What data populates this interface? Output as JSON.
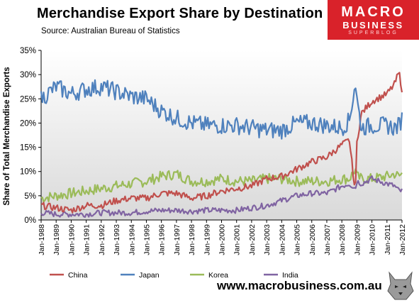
{
  "header": {
    "title": "Merchandise  Export  Share  by  Destination",
    "source": "Source:  Australian Bureau of Statistics"
  },
  "logo": {
    "line1": "MACRO",
    "line2": "BUSINESS",
    "line3": "SUPERBLOG"
  },
  "footer": {
    "website": "www.macrobusiness.com.au"
  },
  "colors": {
    "China": "#c0504d",
    "Japan": "#4f81bd",
    "Korea": "#9bbb59",
    "India": "#8064a2",
    "plot_gradient_top": "#ffffff",
    "plot_gradient_bottom": "#d9d9d9",
    "logo_red": "#d9222a"
  },
  "chart_data": {
    "type": "line",
    "title": "Merchandise  Export  Share  by  Destination",
    "ylabel": "Share of Total Merchandise Exports",
    "xlabel": "",
    "ylim": [
      0,
      35
    ],
    "yticks": [
      "0%",
      "5%",
      "10%",
      "15%",
      "20%",
      "25%",
      "30%",
      "35%"
    ],
    "xticks": [
      "Jan-1988",
      "Jan-1989",
      "Jan-1990",
      "Jan-1991",
      "Jan-1992",
      "Jan-1993",
      "Jan-1994",
      "Jan-1995",
      "Jan-1996",
      "Jan-1997",
      "Jan-1998",
      "Jan-1999",
      "Jan-2000",
      "Jan-2001",
      "Jan-2002",
      "Jan-2003",
      "Jan-2004",
      "Jan-2005",
      "Jan-2006",
      "Jan-2007",
      "Jan-2008",
      "Jan-2009",
      "Jan-2010",
      "Jan-2011",
      "Jan-2012"
    ],
    "grid": false,
    "legend": "bottom",
    "series": [
      {
        "name": "China",
        "x": [
          1988.0,
          1989.0,
          1990.0,
          1991.0,
          1992.0,
          1993.0,
          1994.0,
          1995.0,
          1996.0,
          1997.0,
          1998.0,
          1999.0,
          2000.0,
          2001.0,
          2002.0,
          2003.0,
          2004.0,
          2005.0,
          2006.0,
          2007.0,
          2008.0,
          2008.5,
          2008.9,
          2009.0,
          2009.3,
          2010.0,
          2011.0,
          2011.5,
          2011.8,
          2012.0
        ],
        "y": [
          3.0,
          2.5,
          2.0,
          3.0,
          3.0,
          4.0,
          4.5,
          4.5,
          5.5,
          5.5,
          4.5,
          5.0,
          6.0,
          6.5,
          7.0,
          8.5,
          9.0,
          10.5,
          12.0,
          13.0,
          15.5,
          16.5,
          5.5,
          16.0,
          22.0,
          24.5,
          26.0,
          28.0,
          30.5,
          27.0
        ]
      },
      {
        "name": "Japan",
        "x": [
          1988.0,
          1989.0,
          1990.0,
          1991.0,
          1992.0,
          1993.0,
          1994.0,
          1995.0,
          1996.0,
          1997.0,
          1998.0,
          1999.0,
          2000.0,
          2001.0,
          2002.0,
          2003.0,
          2004.0,
          2005.0,
          2006.0,
          2007.0,
          2008.0,
          2008.5,
          2008.9,
          2009.0,
          2009.3,
          2010.0,
          2011.0,
          2011.5,
          2011.8,
          2012.0
        ],
        "y": [
          25.0,
          27.5,
          26.0,
          27.0,
          27.5,
          26.5,
          25.5,
          25.0,
          22.5,
          21.0,
          20.0,
          19.5,
          19.5,
          19.5,
          19.0,
          18.5,
          18.5,
          20.0,
          20.0,
          19.5,
          19.0,
          20.5,
          28.5,
          25.0,
          19.0,
          19.5,
          19.5,
          19.0,
          19.5,
          21.0
        ]
      },
      {
        "name": "Korea",
        "x": [
          1988.0,
          1989.0,
          1990.0,
          1991.0,
          1992.0,
          1993.0,
          1994.0,
          1995.0,
          1996.0,
          1997.0,
          1998.0,
          1999.0,
          2000.0,
          2001.0,
          2002.0,
          2003.0,
          2004.0,
          2005.0,
          2006.0,
          2007.0,
          2008.0,
          2008.5,
          2008.9,
          2009.0,
          2009.3,
          2010.0,
          2011.0,
          2011.5,
          2011.8,
          2012.0
        ],
        "y": [
          4.5,
          5.0,
          5.5,
          6.0,
          6.5,
          7.0,
          7.5,
          8.0,
          9.0,
          9.5,
          8.0,
          8.0,
          8.5,
          8.0,
          8.0,
          8.5,
          8.5,
          8.0,
          8.0,
          8.0,
          8.5,
          8.5,
          10.5,
          9.0,
          8.5,
          8.5,
          9.0,
          9.5,
          9.0,
          9.5
        ]
      },
      {
        "name": "India",
        "x": [
          1988.0,
          1989.0,
          1990.0,
          1991.0,
          1992.0,
          1993.0,
          1994.0,
          1995.0,
          1996.0,
          1997.0,
          1998.0,
          1999.0,
          2000.0,
          2001.0,
          2002.0,
          2003.0,
          2004.0,
          2005.0,
          2006.0,
          2007.0,
          2008.0,
          2008.5,
          2008.9,
          2009.0,
          2009.3,
          2010.0,
          2011.0,
          2011.5,
          2011.8,
          2012.0
        ],
        "y": [
          1.5,
          1.2,
          1.2,
          1.2,
          1.5,
          1.5,
          1.5,
          1.8,
          2.0,
          2.0,
          1.8,
          2.0,
          2.0,
          2.0,
          2.5,
          3.0,
          4.0,
          5.0,
          5.5,
          5.5,
          7.0,
          7.5,
          6.5,
          8.0,
          7.5,
          8.5,
          7.5,
          7.0,
          6.0,
          6.0
        ]
      }
    ]
  }
}
